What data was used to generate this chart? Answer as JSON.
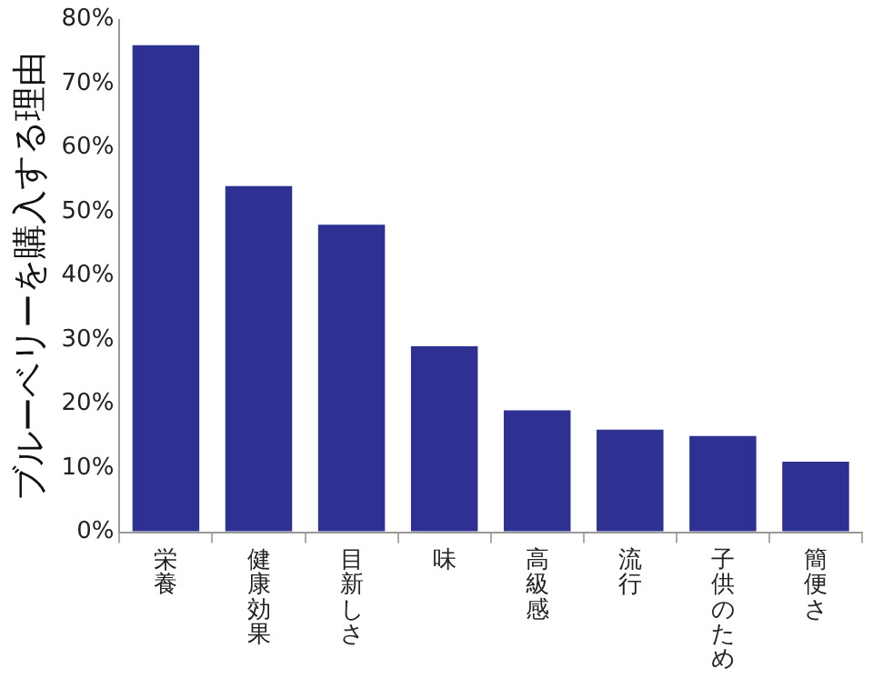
{
  "chart_data": {
    "type": "bar",
    "ylabel": "ブルーベリーを購入する理由",
    "categories": [
      "栄養",
      "健康効果",
      "目新しさ",
      "味",
      "高級感",
      "流行",
      "子供のため",
      "簡便さ"
    ],
    "values": [
      76,
      54,
      48,
      29,
      19,
      16,
      15,
      11
    ],
    "color": "#2e3192",
    "ylim": [
      0,
      80
    ],
    "yticks": [
      {
        "value": 0,
        "label": "0%"
      },
      {
        "value": 10,
        "label": "10%"
      },
      {
        "value": 20,
        "label": "20%"
      },
      {
        "value": 30,
        "label": "30%"
      },
      {
        "value": 40,
        "label": "40%"
      },
      {
        "value": 50,
        "label": "50%"
      },
      {
        "value": 60,
        "label": "60%"
      },
      {
        "value": 70,
        "label": "70%"
      },
      {
        "value": 80,
        "label": "80%"
      }
    ],
    "grid": false,
    "legend": false
  }
}
